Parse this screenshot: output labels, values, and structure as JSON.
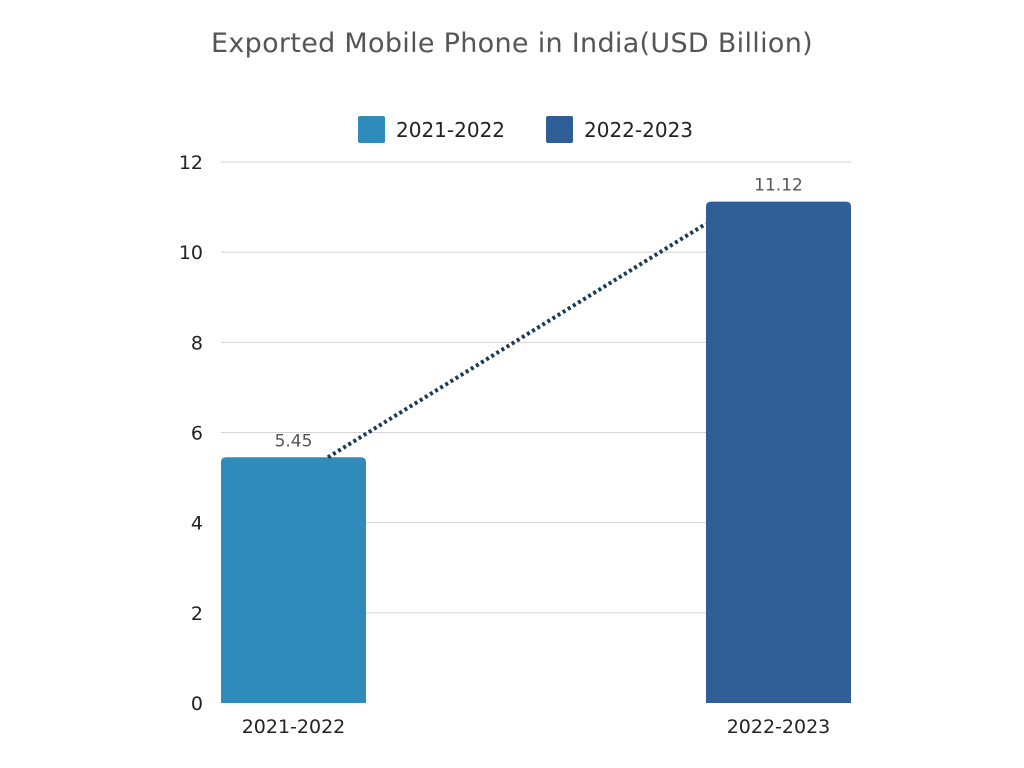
{
  "chart_data": {
    "type": "bar",
    "title": "Exported Mobile Phone in India(USD Billion)",
    "categories": [
      "2021-2022",
      "2022-2023"
    ],
    "values": [
      5.45,
      11.12
    ],
    "data_labels": [
      "5.45",
      "11.12"
    ],
    "colors": [
      "#2E8BBA",
      "#2F5F96"
    ],
    "legend": [
      "2021-2022",
      "2022-2023"
    ],
    "legend_position": "top",
    "xlabel": "",
    "ylabel": "",
    "ylim": [
      0,
      12
    ],
    "yticks": [
      "0",
      "2",
      "4",
      "6",
      "8",
      "10",
      "12"
    ],
    "grid": true,
    "trendline": {
      "style": "dotted",
      "color": "#1B3A5A"
    }
  }
}
